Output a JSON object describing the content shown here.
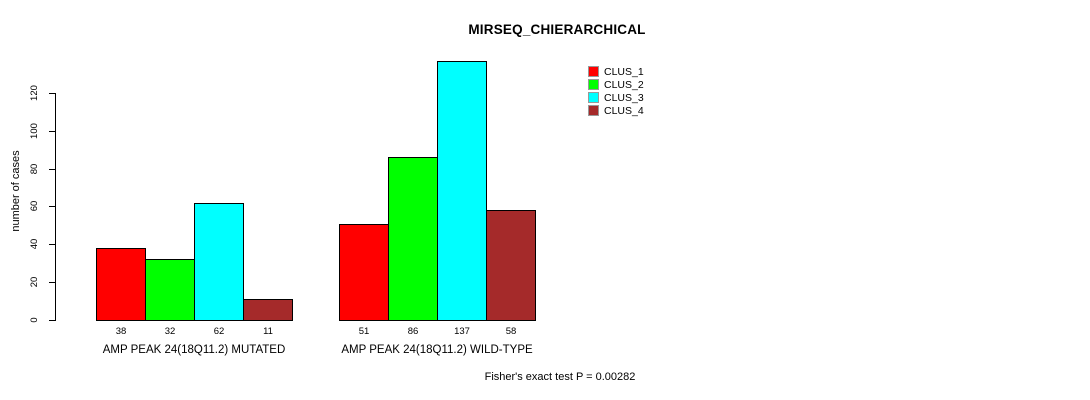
{
  "chart_data": {
    "type": "bar",
    "title": "MIRSEQ_CHIERARCHICAL",
    "ylabel": "number of cases",
    "yticks": [
      0,
      20,
      40,
      60,
      80,
      100,
      120
    ],
    "ylim": [
      0,
      137
    ],
    "grid": false,
    "legend_position": "top-right-outside",
    "categories": [
      "AMP PEAK 24(18Q11.2) MUTATED",
      "AMP PEAK 24(18Q11.2) WILD-TYPE"
    ],
    "series": [
      {
        "name": "CLUS_1",
        "color": "#FF0000",
        "values": [
          38,
          51
        ]
      },
      {
        "name": "CLUS_2",
        "color": "#00FF00",
        "values": [
          32,
          86
        ]
      },
      {
        "name": "CLUS_3",
        "color": "#00FFFF",
        "values": [
          62,
          137
        ]
      },
      {
        "name": "CLUS_4",
        "color": "#A52A2A",
        "values": [
          11,
          58
        ]
      }
    ],
    "bar_value_labels": [
      [
        38,
        32,
        62,
        11
      ],
      [
        51,
        86,
        137,
        58
      ]
    ],
    "annotation": "Fisher's exact test P = 0.00282",
    "axis_color": "#000000",
    "bar_border_color": "#000000"
  }
}
